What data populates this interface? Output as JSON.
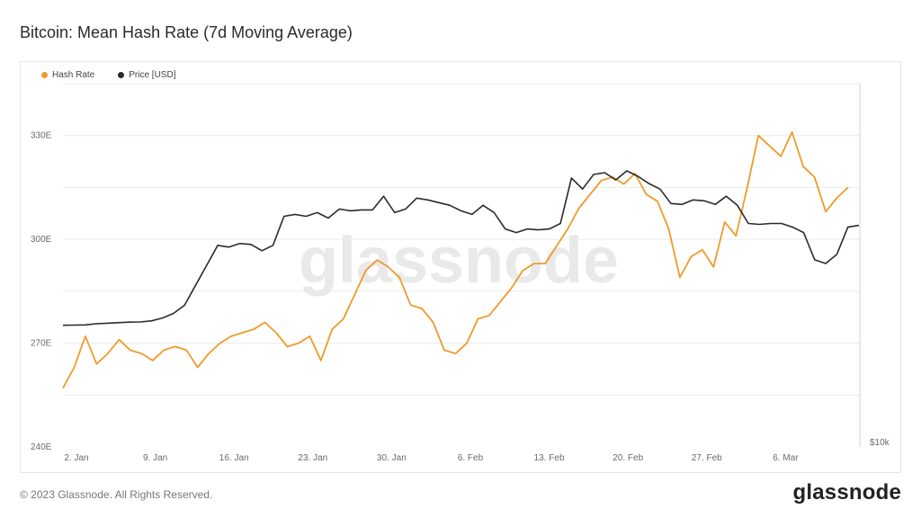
{
  "title": "Bitcoin: Mean Hash Rate (7d Moving Average)",
  "footer": "© 2023 Glassnode. All Rights Reserved.",
  "brand": "glassnode",
  "watermark": "glassnode",
  "colors": {
    "hash_rate": "#f09a2a",
    "price": "#2b2b2b",
    "grid": "#ececec"
  },
  "chart_data": {
    "type": "line",
    "title": "Bitcoin: Mean Hash Rate (7d Moving Average)",
    "legend_position": "top-left",
    "grid": true,
    "x_ticks": [
      "2. Jan",
      "9. Jan",
      "16. Jan",
      "23. Jan",
      "30. Jan",
      "6. Feb",
      "13. Feb",
      "20. Feb",
      "27. Feb",
      "6. Mar"
    ],
    "y_left": {
      "ticks": [
        "240E",
        "270E",
        "300E",
        "330E"
      ],
      "values": [
        240,
        270,
        300,
        330
      ],
      "ylim": [
        240,
        345
      ]
    },
    "y_right": {
      "ticks": [
        "$10k"
      ]
    },
    "series": [
      {
        "name": "Hash Rate",
        "axis": "left",
        "values": [
          257,
          263,
          272,
          264,
          267,
          271,
          268,
          267,
          265,
          268,
          269,
          268,
          263,
          267,
          270,
          272,
          273,
          274,
          276,
          273,
          269,
          270,
          272,
          265,
          274,
          277,
          284,
          291,
          294,
          292,
          289,
          281,
          280,
          276,
          268,
          267,
          270,
          277,
          278,
          282,
          286,
          291,
          293,
          293,
          298,
          303,
          309,
          313,
          317,
          318,
          316,
          319,
          313,
          311,
          303,
          289,
          295,
          297,
          292,
          305,
          301,
          315,
          330,
          327,
          324,
          331,
          321,
          318,
          308,
          312,
          315
        ]
      },
      {
        "name": "Price [USD]",
        "axis": "right",
        "values": [
          16700,
          16710,
          16720,
          16780,
          16810,
          16840,
          16870,
          16880,
          16940,
          17100,
          17350,
          17800,
          18900,
          20000,
          21100,
          21000,
          21200,
          21150,
          20800,
          21100,
          22700,
          22800,
          22700,
          22900,
          22600,
          23100,
          23000,
          23050,
          23050,
          23800,
          22900,
          23100,
          23700,
          23600,
          23450,
          23300,
          23000,
          22800,
          23300,
          22900,
          22000,
          21800,
          22000,
          21950,
          22000,
          22300,
          24800,
          24200,
          25000,
          25100,
          24700,
          25200,
          24900,
          24500,
          24200,
          23400,
          23350,
          23600,
          23550,
          23350,
          23800,
          23300,
          22300,
          22250,
          22300,
          22300,
          22100,
          21800,
          20300,
          20100,
          20600,
          22100,
          22200
        ]
      }
    ]
  }
}
